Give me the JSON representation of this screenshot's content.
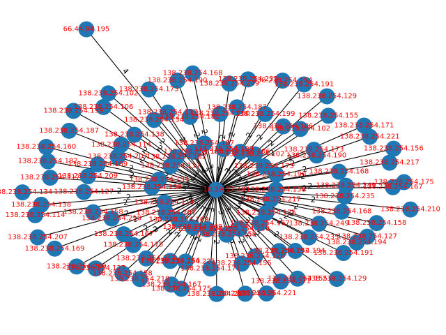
{
  "colors": {
    "node": "#1f77b4",
    "edge": "#000000",
    "label": "#ff0000",
    "edge_label": "#000000"
  },
  "graph": {
    "hub": "10.39.17.49",
    "hub_label": "10.39.17.49",
    "outer": "66.44.94.195",
    "outer_edge_weight": "4",
    "node_prefix": "138.238.254.",
    "ring_weight_inner": "3",
    "ring_weight_outer": "2",
    "visible_octets": [
      "156",
      "217",
      "175",
      "167",
      "210",
      "158",
      "127",
      "209",
      "169",
      "207",
      "114",
      "138",
      "134",
      "117",
      "182",
      "160",
      "187",
      "199",
      "106",
      "102",
      "173",
      "190",
      "168",
      "249",
      "235",
      "194",
      "191",
      "129",
      "155",
      "171",
      "221"
    ]
  }
}
